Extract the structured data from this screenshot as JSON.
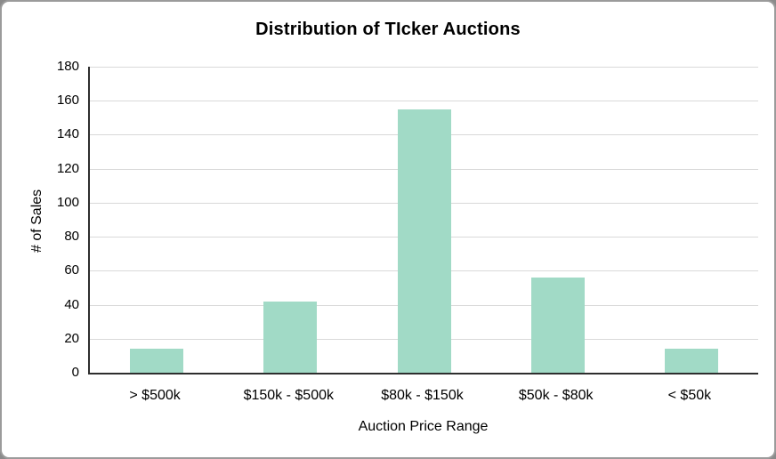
{
  "chart_data": {
    "type": "bar",
    "title": "Distribution of TIcker Auctions",
    "categories": [
      "> $500k",
      "$150k - $500k",
      "$80k - $150k",
      "$50k - $80k",
      "< $50k"
    ],
    "values": [
      14,
      42,
      155,
      56,
      14
    ],
    "xlabel": "Auction Price Range",
    "ylabel": "# of Sales",
    "ylim": [
      0,
      180
    ],
    "ytick_step": 20,
    "ytick_labels": [
      "0",
      "20",
      "40",
      "60",
      "80",
      "100",
      "120",
      "140",
      "160",
      "180"
    ],
    "grid": true,
    "legend": false,
    "bar_color": "#a1dac6",
    "gridline_color": "#d9d9d9",
    "axis_color": "#2e2e2e",
    "text_color": "#000000"
  }
}
